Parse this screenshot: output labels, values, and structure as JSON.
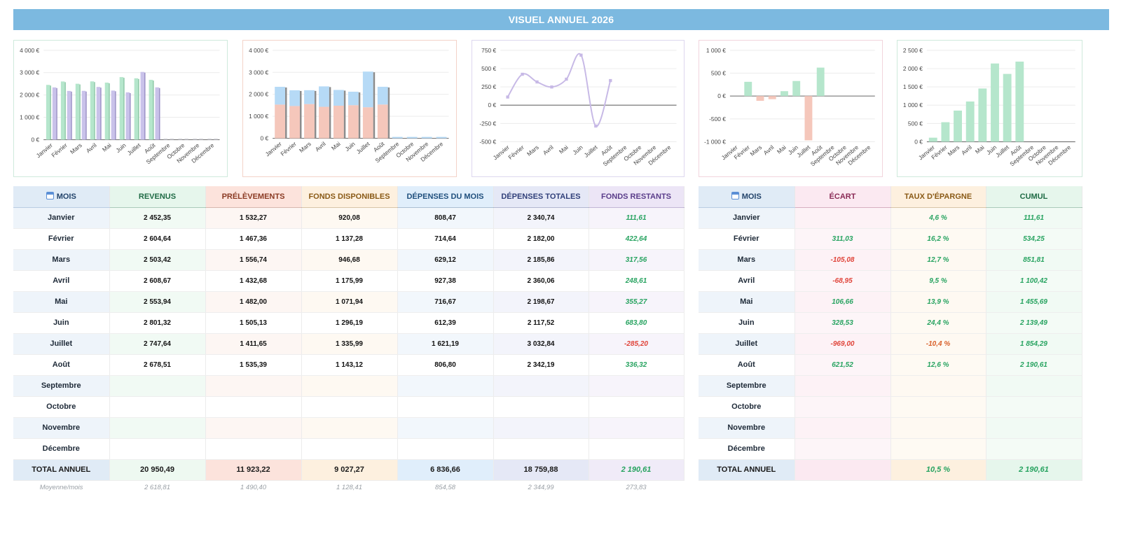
{
  "title": "VISUEL ANNUEL 2026",
  "months": [
    "Janvier",
    "Février",
    "Mars",
    "Avril",
    "Mai",
    "Juin",
    "Juillet",
    "Août",
    "Septembre",
    "Octobre",
    "Novembre",
    "Décembre"
  ],
  "colors": {
    "header_blue": "#7cb9e0",
    "green_bar": "#b5e6cc",
    "purple_bar": "#c9c2ea",
    "salmon_bar": "#f5c7bb",
    "blue_bar": "#b6daf6",
    "line_purple": "#c7b9e6",
    "positive_text": "#27a360",
    "negative_text": "#e0443a"
  },
  "charts": [
    {
      "type": "bar",
      "y_ticks": [
        "4 000 €",
        "3 000 €",
        "2 000 €",
        "1 000 €",
        "0 €"
      ],
      "ylim": [
        0,
        4000
      ],
      "series": [
        {
          "values": [
            2452.35,
            2604.64,
            2503.42,
            2608.67,
            2553.94,
            2801.32,
            2747.64,
            2678.51,
            null,
            null,
            null,
            null
          ]
        },
        {
          "values": [
            2340.74,
            2182.0,
            2185.86,
            2360.06,
            2198.67,
            2117.52,
            3032.84,
            2342.19,
            null,
            null,
            null,
            null
          ]
        }
      ]
    },
    {
      "type": "bar",
      "stacked": true,
      "y_ticks": [
        "4 000 €",
        "3 000 €",
        "2 000 €",
        "1 000 €",
        "0 €"
      ],
      "ylim": [
        0,
        4000
      ],
      "series": [
        {
          "values": [
            1532.27,
            1467.36,
            1556.74,
            1432.68,
            1482.0,
            1505.13,
            1411.65,
            1535.39,
            null,
            null,
            null,
            null
          ]
        },
        {
          "values": [
            808.47,
            714.64,
            629.12,
            927.38,
            716.67,
            612.39,
            1621.19,
            806.8,
            null,
            null,
            null,
            null
          ]
        }
      ]
    },
    {
      "type": "line",
      "y_ticks": [
        "750 €",
        "500 €",
        "250 €",
        "0 €",
        "-250 €",
        "-500 €"
      ],
      "ylim": [
        -500,
        750
      ],
      "series": [
        {
          "values": [
            111.61,
            422.64,
            317.56,
            248.61,
            355.27,
            683.8,
            -285.2,
            336.32,
            null,
            null,
            null,
            null
          ]
        }
      ]
    },
    {
      "type": "bar",
      "y_ticks": [
        "1 000 €",
        "500 €",
        "0 €",
        "-500 €",
        "-1 000 €"
      ],
      "ylim": [
        -1000,
        1000
      ],
      "series": [
        {
          "values": [
            null,
            311.03,
            -105.08,
            -68.95,
            106.66,
            328.53,
            -969.0,
            621.52,
            null,
            null,
            null,
            null
          ]
        }
      ]
    },
    {
      "type": "bar",
      "y_ticks": [
        "2 500 €",
        "2 000 €",
        "1 500 €",
        "1 000 €",
        "500 €",
        "0 €"
      ],
      "ylim": [
        0,
        2500
      ],
      "series": [
        {
          "values": [
            111.61,
            534.25,
            851.81,
            1100.42,
            1455.69,
            2139.49,
            1854.29,
            2190.61,
            null,
            null,
            null,
            null
          ]
        }
      ]
    }
  ],
  "left_table": {
    "headers": [
      "MOIS",
      "REVENUS",
      "PRÉLÈVEMENTS",
      "FONDS DISPONIBLES",
      "DÉPENSES DU MOIS",
      "DÉPENSES TOTALES",
      "FONDS RESTANTS"
    ],
    "rows": [
      [
        "Janvier",
        "2 452,35",
        "1 532,27",
        "920,08",
        "808,47",
        "2 340,74",
        "111,61"
      ],
      [
        "Février",
        "2 604,64",
        "1 467,36",
        "1 137,28",
        "714,64",
        "2 182,00",
        "422,64"
      ],
      [
        "Mars",
        "2 503,42",
        "1 556,74",
        "946,68",
        "629,12",
        "2 185,86",
        "317,56"
      ],
      [
        "Avril",
        "2 608,67",
        "1 432,68",
        "1 175,99",
        "927,38",
        "2 360,06",
        "248,61"
      ],
      [
        "Mai",
        "2 553,94",
        "1 482,00",
        "1 071,94",
        "716,67",
        "2 198,67",
        "355,27"
      ],
      [
        "Juin",
        "2 801,32",
        "1 505,13",
        "1 296,19",
        "612,39",
        "2 117,52",
        "683,80"
      ],
      [
        "Juillet",
        "2 747,64",
        "1 411,65",
        "1 335,99",
        "1 621,19",
        "3 032,84",
        "-285,20"
      ],
      [
        "Août",
        "2 678,51",
        "1 535,39",
        "1 143,12",
        "806,80",
        "2 342,19",
        "336,32"
      ],
      [
        "Septembre",
        "",
        "",
        "",
        "",
        "",
        ""
      ],
      [
        "Octobre",
        "",
        "",
        "",
        "",
        "",
        ""
      ],
      [
        "Novembre",
        "",
        "",
        "",
        "",
        "",
        ""
      ],
      [
        "Décembre",
        "",
        "",
        "",
        "",
        "",
        ""
      ]
    ],
    "total": [
      "TOTAL ANNUEL",
      "20 950,49",
      "11 923,22",
      "9 027,27",
      "6 836,66",
      "18 759,88",
      "2 190,61"
    ],
    "average": [
      "Moyenne/mois",
      "2 618,81",
      "1 490,40",
      "1 128,41",
      "854,58",
      "2 344,99",
      "273,83"
    ]
  },
  "right_table": {
    "headers": [
      "MOIS",
      "ÉCART",
      "TAUX D'ÉPARGNE",
      "CUMUL"
    ],
    "rows": [
      [
        "Janvier",
        "",
        "4,6 %",
        "111,61"
      ],
      [
        "Février",
        "311,03",
        "16,2 %",
        "534,25"
      ],
      [
        "Mars",
        "-105,08",
        "12,7 %",
        "851,81"
      ],
      [
        "Avril",
        "-68,95",
        "9,5 %",
        "1 100,42"
      ],
      [
        "Mai",
        "106,66",
        "13,9 %",
        "1 455,69"
      ],
      [
        "Juin",
        "328,53",
        "24,4 %",
        "2 139,49"
      ],
      [
        "Juillet",
        "-969,00",
        "-10,4 %",
        "1 854,29"
      ],
      [
        "Août",
        "621,52",
        "12,6 %",
        "2 190,61"
      ],
      [
        "Septembre",
        "",
        "",
        ""
      ],
      [
        "Octobre",
        "",
        "",
        ""
      ],
      [
        "Novembre",
        "",
        "",
        ""
      ],
      [
        "Décembre",
        "",
        "",
        ""
      ]
    ],
    "total": [
      "TOTAL ANNUEL",
      "",
      "10,5 %",
      "2 190,61"
    ]
  }
}
